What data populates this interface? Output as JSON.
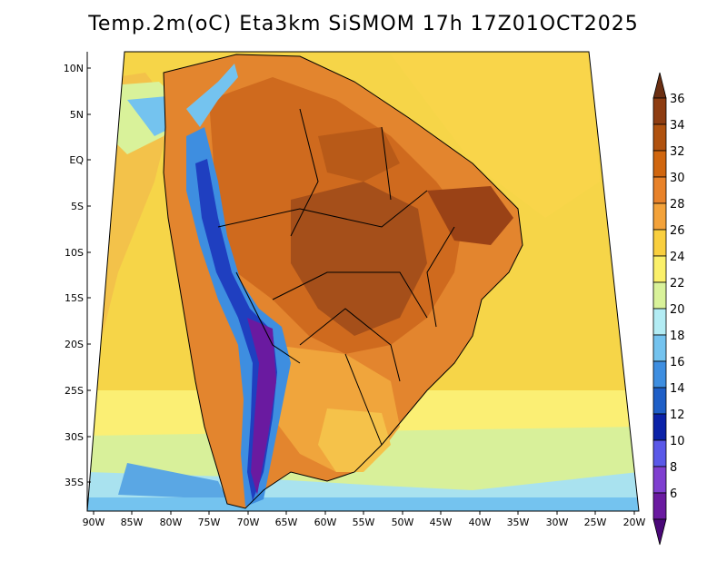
{
  "title": "Temp.2m(oC) Eta3km SiSMOM 17h 17Z01OCT2025",
  "map": {
    "lat_labels": [
      "10N",
      "5N",
      "EQ",
      "5S",
      "10S",
      "15S",
      "20S",
      "25S",
      "30S",
      "35S"
    ],
    "lon_labels": [
      "90W",
      "85W",
      "80W",
      "75W",
      "70W",
      "65W",
      "60W",
      "55W",
      "50W",
      "45W",
      "40W",
      "35W",
      "30W",
      "25W",
      "20W"
    ]
  },
  "colorbar": {
    "labels": [
      "36",
      "34",
      "32",
      "30",
      "28",
      "26",
      "24",
      "22",
      "20",
      "18",
      "16",
      "14",
      "12",
      "10",
      "8",
      "6"
    ],
    "colors": [
      "#6b2f12",
      "#8e3d12",
      "#b0520f",
      "#d0660f",
      "#e8822a",
      "#f3a23a",
      "#f9cf3f",
      "#fbf06a",
      "#d9f29a",
      "#b3ecf4",
      "#74c3ef",
      "#3e8ee0",
      "#1f5fc7",
      "#0b22a8",
      "#5a58e8",
      "#7f3fd0",
      "#6a1aa0",
      "#4a0878"
    ]
  }
}
